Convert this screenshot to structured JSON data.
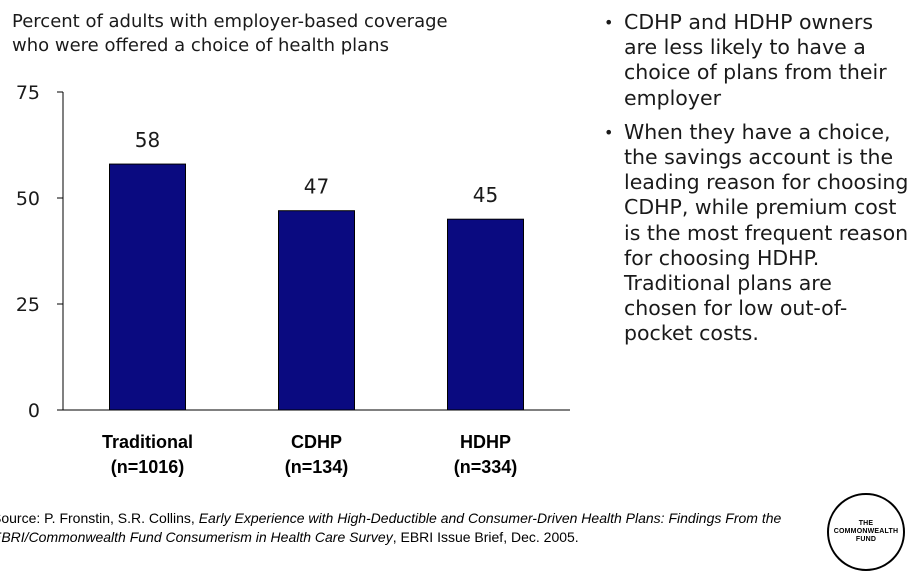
{
  "chart_data": {
    "type": "bar",
    "title_line1": "Percent of adults with employer-based coverage",
    "title_line2": "who were offered a choice of health plans",
    "categories": [
      {
        "line1": "Traditional",
        "line2": "(n=1016)"
      },
      {
        "line1": "CDHP",
        "line2": "(n=134)"
      },
      {
        "line1": "HDHP",
        "line2": "(n=334)"
      }
    ],
    "values": [
      58,
      47,
      45
    ],
    "data_labels": [
      "58",
      "47",
      "45"
    ],
    "ylim": [
      0,
      75
    ],
    "yticks": [
      0,
      25,
      50,
      75
    ],
    "ytick_labels": [
      "0",
      "25",
      "50",
      "75"
    ],
    "grid": false,
    "legend": "none",
    "bar_color": "#0a0a80"
  },
  "bullets": [
    "CDHP and HDHP owners are less likely to have a choice of plans from their employer",
    "When they have a choice, the savings account is the leading reason for choosing CDHP, while premium cost is the most frequent reason for choosing HDHP. Traditional plans are chosen for low out-of-pocket costs."
  ],
  "source": {
    "prefix": "Source: P. Fronstin, S.R. Collins, ",
    "title": "Early Experience with High-Deductible and Consumer-Driven Health Plans: Findings From the EBRI/Commonwealth Fund Consumerism in Health Care Survey",
    "suffix": ", EBRI Issue Brief, Dec. 2005."
  },
  "logo": {
    "line1": "THE",
    "line2": "COMMONWEALTH",
    "line3": "FUND"
  }
}
